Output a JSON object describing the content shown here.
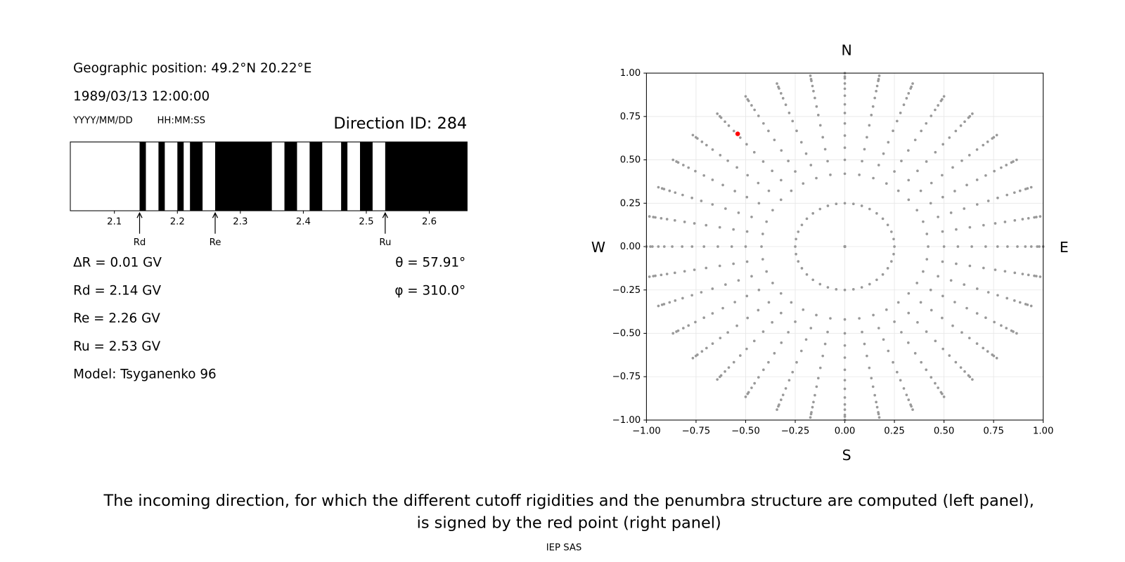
{
  "texts": {
    "position": "Geographic position: 49.2°N 20.22°E",
    "datetime": "1989/03/13 12:00:00",
    "date_format": "YYYY/MM/DD",
    "time_format": "HH:MM:SS",
    "direction_id": "Direction ID: 284",
    "delta_r": "ΔR = 0.01 GV",
    "rd": "Rd = 2.14 GV",
    "re": "Re = 2.26 GV",
    "ru": "Ru = 2.53 GV",
    "model": "Model: Tsyganenko 96",
    "theta": "θ = 57.91°",
    "phi": "φ = 310.0°"
  },
  "chart_data": [
    {
      "type": "penumbra",
      "xlim": [
        2.03,
        2.66
      ],
      "xticks": [
        2.1,
        2.2,
        2.3,
        2.4,
        2.5,
        2.6
      ],
      "color": "#000000",
      "segments": [
        [
          2.14,
          2.15
        ],
        [
          2.17,
          2.18
        ],
        [
          2.2,
          2.21
        ],
        [
          2.22,
          2.24
        ],
        [
          2.26,
          2.35
        ],
        [
          2.37,
          2.39
        ],
        [
          2.41,
          2.43
        ],
        [
          2.46,
          2.47
        ],
        [
          2.49,
          2.51
        ],
        [
          2.53,
          2.66
        ]
      ],
      "markers": [
        {
          "label": "Rd",
          "value": 2.14
        },
        {
          "label": "Re",
          "value": 2.26
        },
        {
          "label": "Ru",
          "value": 2.53
        }
      ]
    },
    {
      "type": "polar_scatter",
      "axis_labels": {
        "top": "N",
        "bottom": "S",
        "left": "W",
        "right": "E"
      },
      "xlim": [
        -1,
        1
      ],
      "ylim": [
        -1,
        1
      ],
      "xticks": [
        {
          "value": -1,
          "label": "−1.00"
        },
        {
          "value": -0.75,
          "label": "−0.75"
        },
        {
          "value": -0.5,
          "label": "−0.50"
        },
        {
          "value": -0.25,
          "label": "−0.25"
        },
        {
          "value": 0,
          "label": "0.00"
        },
        0.25,
        {
          "value": 0.5,
          "label": "0.50"
        },
        0.75,
        {
          "value": 1,
          "label": "1.00"
        }
      ],
      "yticks": [
        {
          "value": -1,
          "label": "−1.00"
        },
        {
          "value": -0.75,
          "label": "−0.75"
        },
        {
          "value": -0.5,
          "label": "−0.50"
        },
        {
          "value": -0.25,
          "label": "−0.25"
        },
        {
          "value": 0,
          "label": "0.00"
        },
        0.25,
        {
          "value": 0.5,
          "label": "0.50"
        },
        0.75,
        {
          "value": 1,
          "label": "1.00"
        }
      ],
      "grid": true,
      "color": "#999999",
      "radii": [
        0,
        0.25,
        0.42,
        0.5,
        0.57,
        0.64,
        0.71,
        0.77,
        0.82,
        0.87,
        0.91,
        0.94,
        0.97,
        0.98,
        1
      ],
      "azimuths": [
        0,
        10,
        20,
        30,
        40,
        50,
        60,
        70,
        80,
        90,
        100,
        110,
        120,
        130,
        140,
        150,
        160,
        170,
        180,
        190,
        200,
        210,
        220,
        230,
        240,
        250,
        260,
        270,
        280,
        290,
        300,
        310,
        320,
        330,
        340,
        350
      ],
      "highlight": {
        "x": -0.54,
        "y": 0.65,
        "color": "#ff0000"
      }
    }
  ],
  "caption": [
    "The incoming direction, for which the different cutoff rigidities and the penumbra structure are computed (left panel),",
    "is signed by the red point (right panel)"
  ],
  "footer": "IEP SAS"
}
